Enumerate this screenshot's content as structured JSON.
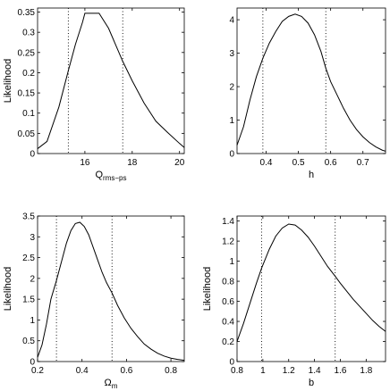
{
  "chart_data": [
    {
      "type": "line",
      "ylabel": "Likelihood",
      "xlabel": "Q",
      "xlabel_sub": "rms−ps",
      "xlim": [
        14,
        20.2
      ],
      "ylim": [
        0,
        0.36
      ],
      "xticks": [
        16,
        18,
        20
      ],
      "xtick_labels": [
        "16",
        "18",
        "20"
      ],
      "yticks": [
        0,
        0.05,
        0.1,
        0.15,
        0.2,
        0.25,
        0.3,
        0.35
      ],
      "ytick_labels": [
        "0",
        "0.05",
        "0.1",
        "0.15",
        "0.2",
        "0.25",
        "0.3",
        "0.35"
      ],
      "grid": false,
      "dotted_lines_x": [
        15.3,
        17.6
      ],
      "series": [
        {
          "x": [
            14.0,
            14.4,
            14.9,
            15.3,
            15.6,
            15.9,
            16.0,
            16.3,
            16.6,
            17.0,
            17.6,
            18.0,
            18.5,
            19.0,
            19.5,
            20.0,
            20.2
          ],
          "y": [
            0.012,
            0.03,
            0.115,
            0.205,
            0.27,
            0.325,
            0.347,
            0.347,
            0.347,
            0.31,
            0.228,
            0.18,
            0.125,
            0.08,
            0.052,
            0.025,
            0.015
          ]
        }
      ]
    },
    {
      "type": "line",
      "ylabel": "",
      "xlabel": "h",
      "xlabel_sub": "",
      "xlim": [
        0.31,
        0.77
      ],
      "ylim": [
        0,
        4.35
      ],
      "xticks": [
        0.4,
        0.5,
        0.6,
        0.7
      ],
      "xtick_labels": [
        "0.4",
        "0.5",
        "0.6",
        "0.7"
      ],
      "yticks": [
        0,
        1,
        2,
        3,
        4
      ],
      "ytick_labels": [
        "0",
        "1",
        "2",
        "3",
        "4"
      ],
      "grid": false,
      "dotted_lines_x": [
        0.39,
        0.585
      ],
      "series": [
        {
          "x": [
            0.31,
            0.33,
            0.35,
            0.37,
            0.39,
            0.41,
            0.43,
            0.45,
            0.47,
            0.49,
            0.51,
            0.53,
            0.55,
            0.57,
            0.585,
            0.6,
            0.62,
            0.64,
            0.66,
            0.68,
            0.7,
            0.72,
            0.74,
            0.76,
            0.77
          ],
          "y": [
            0.25,
            0.8,
            1.6,
            2.3,
            2.85,
            3.3,
            3.65,
            3.95,
            4.1,
            4.17,
            4.1,
            3.9,
            3.55,
            3.05,
            2.55,
            2.15,
            1.75,
            1.35,
            1.0,
            0.72,
            0.5,
            0.33,
            0.2,
            0.1,
            0.07
          ]
        }
      ]
    },
    {
      "type": "line",
      "ylabel": "Likelihood",
      "xlabel": "Ω",
      "xlabel_sub": "m",
      "xlim": [
        0.2,
        0.86
      ],
      "ylim": [
        0,
        3.5
      ],
      "xticks": [
        0.2,
        0.4,
        0.6,
        0.8
      ],
      "xtick_labels": [
        "0.2",
        "0.4",
        "0.6",
        "0.8"
      ],
      "yticks": [
        0,
        0.5,
        1,
        1.5,
        2,
        2.5,
        3,
        3.5
      ],
      "ytick_labels": [
        "0",
        "0.5",
        "1",
        "1.5",
        "2",
        "2.5",
        "3",
        "3.5"
      ],
      "grid": false,
      "dotted_lines_x": [
        0.285,
        0.535
      ],
      "series": [
        {
          "x": [
            0.2,
            0.22,
            0.24,
            0.26,
            0.285,
            0.31,
            0.33,
            0.35,
            0.37,
            0.39,
            0.41,
            0.43,
            0.45,
            0.47,
            0.49,
            0.51,
            0.535,
            0.56,
            0.59,
            0.62,
            0.65,
            0.68,
            0.71,
            0.74,
            0.77,
            0.8,
            0.83,
            0.86
          ],
          "y": [
            0.1,
            0.4,
            0.9,
            1.5,
            1.95,
            2.45,
            2.85,
            3.15,
            3.32,
            3.35,
            3.25,
            3.05,
            2.75,
            2.45,
            2.15,
            1.9,
            1.65,
            1.35,
            1.05,
            0.8,
            0.6,
            0.42,
            0.3,
            0.2,
            0.13,
            0.08,
            0.05,
            0.03
          ]
        }
      ]
    },
    {
      "type": "line",
      "ylabel": "Likelihood",
      "xlabel": "b",
      "xlabel_sub": "",
      "xlim": [
        0.8,
        1.95
      ],
      "ylim": [
        0,
        1.45
      ],
      "xticks": [
        0.8,
        1.0,
        1.2,
        1.4,
        1.6,
        1.8
      ],
      "xtick_labels": [
        "0.8",
        "1",
        "1.2",
        "1.4",
        "1.6",
        "1.8"
      ],
      "yticks": [
        0,
        0.2,
        0.4,
        0.6,
        0.8,
        1.0,
        1.2,
        1.4
      ],
      "ytick_labels": [
        "0",
        "0.2",
        "0.4",
        "0.6",
        "0.8",
        "1",
        "1.2",
        "1.4"
      ],
      "grid": false,
      "dotted_lines_x": [
        0.99,
        1.56
      ],
      "series": [
        {
          "x": [
            0.8,
            0.85,
            0.9,
            0.95,
            0.99,
            1.05,
            1.1,
            1.15,
            1.2,
            1.25,
            1.3,
            1.35,
            1.4,
            1.45,
            1.5,
            1.56,
            1.6,
            1.65,
            1.7,
            1.75,
            1.8,
            1.85,
            1.9,
            1.95
          ],
          "y": [
            0.2,
            0.38,
            0.58,
            0.78,
            0.93,
            1.12,
            1.25,
            1.33,
            1.37,
            1.36,
            1.31,
            1.24,
            1.15,
            1.05,
            0.95,
            0.85,
            0.78,
            0.7,
            0.62,
            0.55,
            0.48,
            0.41,
            0.35,
            0.3
          ]
        }
      ]
    }
  ]
}
